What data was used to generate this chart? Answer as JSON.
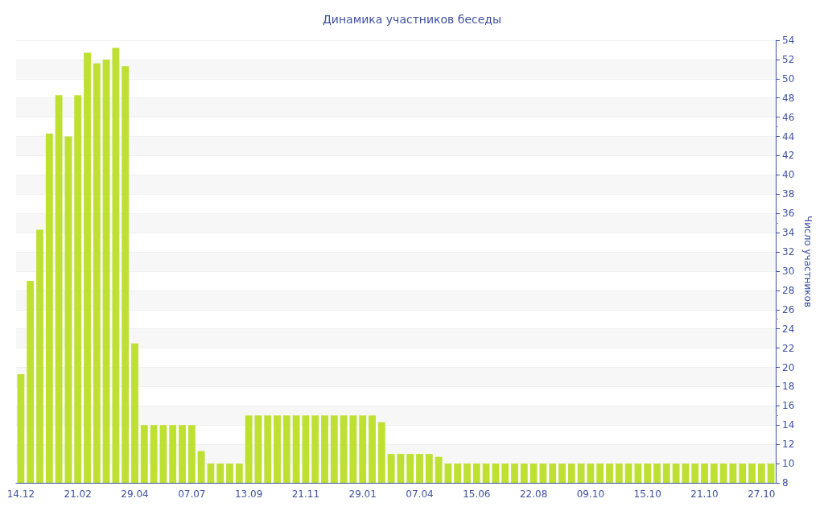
{
  "chart_data": {
    "type": "bar",
    "title": "Динамика участников беседы",
    "ylabel": "Число участников",
    "categories": [
      "14.12",
      null,
      null,
      null,
      null,
      null,
      "21.02",
      null,
      null,
      null,
      null,
      null,
      "29.04",
      null,
      null,
      null,
      null,
      null,
      "07.07",
      null,
      null,
      null,
      null,
      null,
      "13.09",
      null,
      null,
      null,
      null,
      null,
      "21.11",
      null,
      null,
      null,
      null,
      null,
      "29.01",
      null,
      null,
      null,
      null,
      null,
      "07.04",
      null,
      null,
      null,
      null,
      null,
      "15.06",
      null,
      null,
      null,
      null,
      null,
      "22.08",
      null,
      null,
      null,
      null,
      null,
      "09.10",
      null,
      null,
      null,
      null,
      null,
      "15.10",
      null,
      null,
      null,
      null,
      null,
      "21.10",
      null,
      null,
      null,
      null,
      null,
      "27.10",
      null
    ],
    "values": [
      19.3,
      29,
      34.3,
      44.3,
      48.3,
      44,
      48.3,
      52.7,
      51.6,
      52,
      53.2,
      51.3,
      22.5,
      14,
      14,
      14,
      14,
      14,
      14,
      11.3,
      10,
      10,
      10,
      10,
      15,
      15,
      15,
      15,
      15,
      15,
      15,
      15,
      15,
      15,
      15,
      15,
      15,
      15,
      14.3,
      11,
      11,
      11,
      11,
      11,
      10.7,
      10,
      10,
      10,
      10,
      10,
      10,
      10,
      10,
      10,
      10,
      10,
      10,
      10,
      10,
      10,
      10,
      10,
      10,
      10,
      10,
      10,
      10,
      10,
      10,
      10,
      10,
      10,
      10,
      10,
      10,
      10,
      10,
      10,
      10,
      10
    ],
    "color": "#bde033",
    "ylim": [
      8,
      54
    ],
    "yticks": [
      8,
      10,
      12,
      14,
      16,
      18,
      20,
      22,
      24,
      26,
      28,
      30,
      32,
      34,
      36,
      38,
      40,
      42,
      44,
      46,
      48,
      50,
      52,
      54
    ],
    "grid": "y"
  }
}
